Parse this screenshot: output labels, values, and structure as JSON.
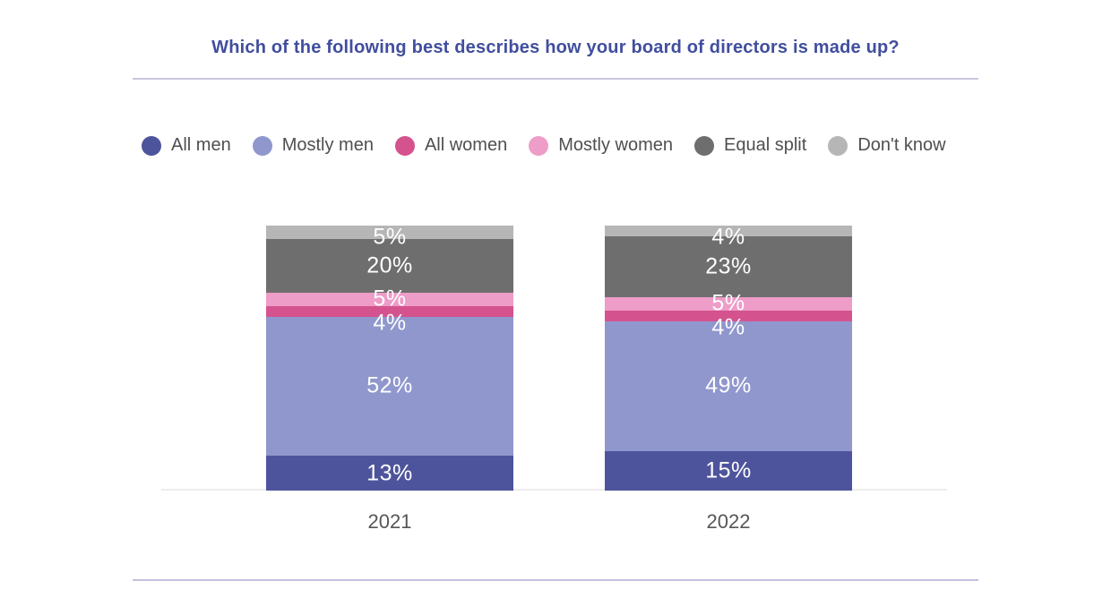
{
  "page": {
    "title": "Which of the following best describes how your board of directors is made up?"
  },
  "chart_data": {
    "type": "bar",
    "variant": "stacked-column",
    "title": "Which of the following best describes how your board of directors is made up?",
    "categories": [
      "2021",
      "2022"
    ],
    "unit": "%",
    "series": [
      {
        "name": "All men",
        "color": "#4e549c",
        "values": [
          13,
          15
        ]
      },
      {
        "name": "Mostly men",
        "color": "#8f97cd",
        "values": [
          52,
          49
        ]
      },
      {
        "name": "All women",
        "color": "#d4538f",
        "values": [
          4,
          4
        ]
      },
      {
        "name": "Mostly women",
        "color": "#ee9cc8",
        "values": [
          5,
          5
        ]
      },
      {
        "name": "Equal split",
        "color": "#6e6e6e",
        "values": [
          20,
          23
        ]
      },
      {
        "name": "Don't know",
        "color": "#b6b6b6",
        "values": [
          5,
          4
        ]
      }
    ],
    "stack_order_bottom_to_top": [
      "All men",
      "Mostly men",
      "All women",
      "Mostly women",
      "Equal split",
      "Don't know"
    ],
    "data_labels": "white percentage labels inside segments",
    "legend_position": "top",
    "grid": "off",
    "axis": "single light gray baseline, no tick values"
  },
  "colors": {
    "title_text": "#414e9e",
    "legend_text": "#4f4f4f",
    "axis_category_text": "#565656",
    "data_label_text": "#ffffff",
    "baseline": "#ededed",
    "divider": "#c9c7dd"
  }
}
